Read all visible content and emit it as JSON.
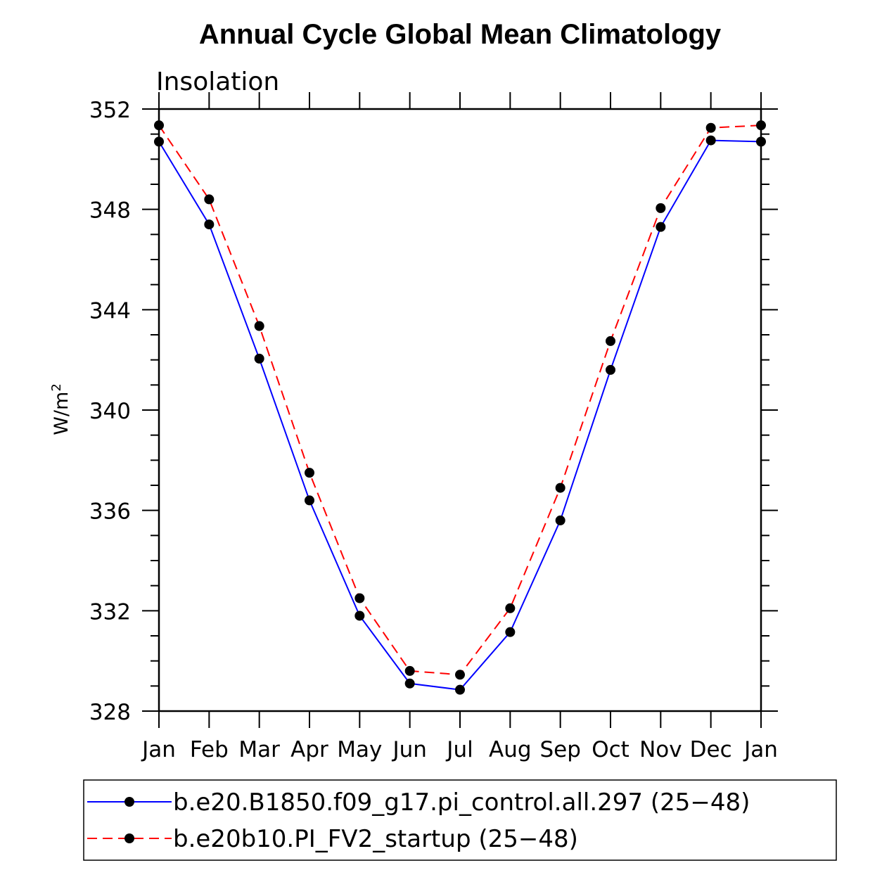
{
  "chart_data": {
    "type": "line",
    "title": "Annual Cycle Global Mean Climatology",
    "subtitle": "Insolation",
    "xlabel": "",
    "ylabel": "W/m",
    "ylabel_superscript": "2",
    "categories": [
      "Jan",
      "Feb",
      "Mar",
      "Apr",
      "May",
      "Jun",
      "Jul",
      "Aug",
      "Sep",
      "Oct",
      "Nov",
      "Dec",
      "Jan"
    ],
    "ylim": [
      328,
      352
    ],
    "yticks": [
      328,
      332,
      336,
      340,
      344,
      348,
      352
    ],
    "series": [
      {
        "name": "b.e20.B1850.f09_g17.pi_control.all.297 (25−48)",
        "color": "#0000ff",
        "dash": "solid",
        "values": [
          350.7,
          347.4,
          342.05,
          336.4,
          331.8,
          329.1,
          328.85,
          331.15,
          335.6,
          341.6,
          347.3,
          350.75,
          350.7
        ]
      },
      {
        "name": "b.e20b10.PI_FV2_startup (25−48)",
        "color": "#ff0000",
        "dash": "dashed",
        "values": [
          351.35,
          348.4,
          343.35,
          337.5,
          332.5,
          329.6,
          329.45,
          332.1,
          336.9,
          342.75,
          348.05,
          351.25,
          351.35
        ]
      }
    ],
    "legend_position": "bottom"
  }
}
